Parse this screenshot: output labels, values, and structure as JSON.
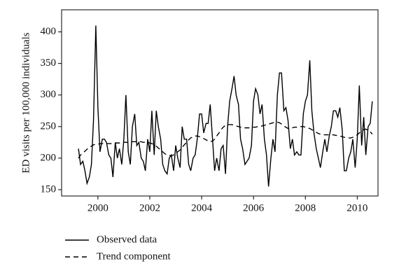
{
  "chart_data": {
    "type": "line",
    "y_label": "ED visits per 100,000 individuals",
    "x": [
      1999.25,
      1999.33,
      1999.42,
      1999.5,
      1999.58,
      1999.67,
      1999.75,
      1999.83,
      1999.92,
      2000.0,
      2000.08,
      2000.17,
      2000.25,
      2000.33,
      2000.42,
      2000.5,
      2000.58,
      2000.67,
      2000.75,
      2000.83,
      2000.92,
      2001.0,
      2001.08,
      2001.17,
      2001.25,
      2001.33,
      2001.42,
      2001.5,
      2001.58,
      2001.67,
      2001.75,
      2001.83,
      2001.92,
      2002.0,
      2002.08,
      2002.17,
      2002.25,
      2002.33,
      2002.42,
      2002.5,
      2002.58,
      2002.67,
      2002.75,
      2002.83,
      2002.92,
      2003.0,
      2003.08,
      2003.17,
      2003.25,
      2003.33,
      2003.42,
      2003.5,
      2003.58,
      2003.67,
      2003.75,
      2003.83,
      2003.92,
      2004.0,
      2004.08,
      2004.17,
      2004.25,
      2004.33,
      2004.42,
      2004.5,
      2004.58,
      2004.67,
      2004.75,
      2004.83,
      2004.92,
      2005.0,
      2005.08,
      2005.17,
      2005.25,
      2005.33,
      2005.42,
      2005.5,
      2005.58,
      2005.67,
      2005.75,
      2005.83,
      2005.92,
      2006.0,
      2006.08,
      2006.17,
      2006.25,
      2006.33,
      2006.42,
      2006.5,
      2006.58,
      2006.67,
      2006.75,
      2006.83,
      2006.92,
      2007.0,
      2007.08,
      2007.17,
      2007.25,
      2007.33,
      2007.42,
      2007.5,
      2007.58,
      2007.67,
      2007.75,
      2007.83,
      2007.92,
      2008.0,
      2008.08,
      2008.17,
      2008.25,
      2008.33,
      2008.42,
      2008.5,
      2008.58,
      2008.67,
      2008.75,
      2008.83,
      2008.92,
      2009.0,
      2009.08,
      2009.17,
      2009.25,
      2009.33,
      2009.42,
      2009.5,
      2009.58,
      2009.67,
      2009.75,
      2009.83,
      2009.92,
      2010.0,
      2010.08,
      2010.17,
      2010.25,
      2010.33,
      2010.42,
      2010.5,
      2010.58
    ],
    "series": [
      {
        "name": "Observed data",
        "color": "#000000",
        "linestyle": "solid",
        "values": [
          215,
          190,
          195,
          180,
          160,
          170,
          190,
          260,
          410,
          280,
          210,
          230,
          230,
          225,
          205,
          200,
          170,
          225,
          200,
          215,
          190,
          230,
          300,
          210,
          190,
          250,
          270,
          220,
          225,
          200,
          195,
          180,
          230,
          210,
          275,
          205,
          275,
          250,
          230,
          190,
          180,
          175,
          200,
          205,
          180,
          220,
          200,
          185,
          250,
          230,
          230,
          190,
          180,
          200,
          205,
          230,
          270,
          270,
          240,
          255,
          255,
          285,
          230,
          180,
          200,
          180,
          215,
          220,
          175,
          250,
          290,
          310,
          330,
          300,
          285,
          230,
          215,
          190,
          195,
          200,
          220,
          290,
          310,
          300,
          270,
          285,
          230,
          205,
          155,
          200,
          230,
          210,
          300,
          335,
          335,
          275,
          280,
          260,
          215,
          230,
          205,
          210,
          205,
          205,
          270,
          290,
          300,
          355,
          275,
          240,
          215,
          200,
          185,
          210,
          230,
          210,
          235,
          250,
          275,
          275,
          265,
          280,
          245,
          180,
          180,
          200,
          210,
          230,
          185,
          230,
          315,
          220,
          265,
          205,
          250,
          255,
          290
        ]
      },
      {
        "name": "Trend component",
        "color": "#000000",
        "linestyle": "dashed",
        "values": [
          200,
          205,
          208,
          211,
          214,
          217,
          219,
          221,
          222,
          222,
          223,
          223,
          223,
          223,
          223,
          223,
          223,
          224,
          224,
          224,
          225,
          225,
          225,
          225,
          225,
          226,
          226,
          226,
          226,
          226,
          225,
          225,
          225,
          224,
          223,
          221,
          219,
          216,
          213,
          210,
          207,
          205,
          204,
          204,
          205,
          207,
          210,
          213,
          217,
          221,
          225,
          229,
          232,
          234,
          235,
          235,
          234,
          233,
          231,
          229,
          227,
          226,
          227,
          230,
          235,
          240,
          245,
          249,
          252,
          253,
          253,
          253,
          252,
          251,
          250,
          249,
          248,
          248,
          248,
          248,
          248,
          249,
          249,
          250,
          250,
          251,
          252,
          253,
          254,
          255,
          256,
          257,
          257,
          256,
          254,
          251,
          249,
          247,
          247,
          248,
          249,
          249,
          250,
          250,
          250,
          249,
          248,
          247,
          245,
          243,
          241,
          239,
          238,
          237,
          237,
          237,
          237,
          237,
          237,
          236,
          236,
          235,
          234,
          233,
          232,
          232,
          232,
          233,
          235,
          237,
          240,
          243,
          245,
          246,
          244,
          242,
          238
        ]
      }
    ],
    "xlim": [
      1998.6,
      2010.8
    ],
    "xticks": [
      2000,
      2002,
      2004,
      2006,
      2008,
      2010
    ],
    "ylim": [
      140,
      435
    ],
    "yticks": [
      150,
      200,
      250,
      300,
      350,
      400
    ],
    "grid": false,
    "legend": "bottom"
  }
}
